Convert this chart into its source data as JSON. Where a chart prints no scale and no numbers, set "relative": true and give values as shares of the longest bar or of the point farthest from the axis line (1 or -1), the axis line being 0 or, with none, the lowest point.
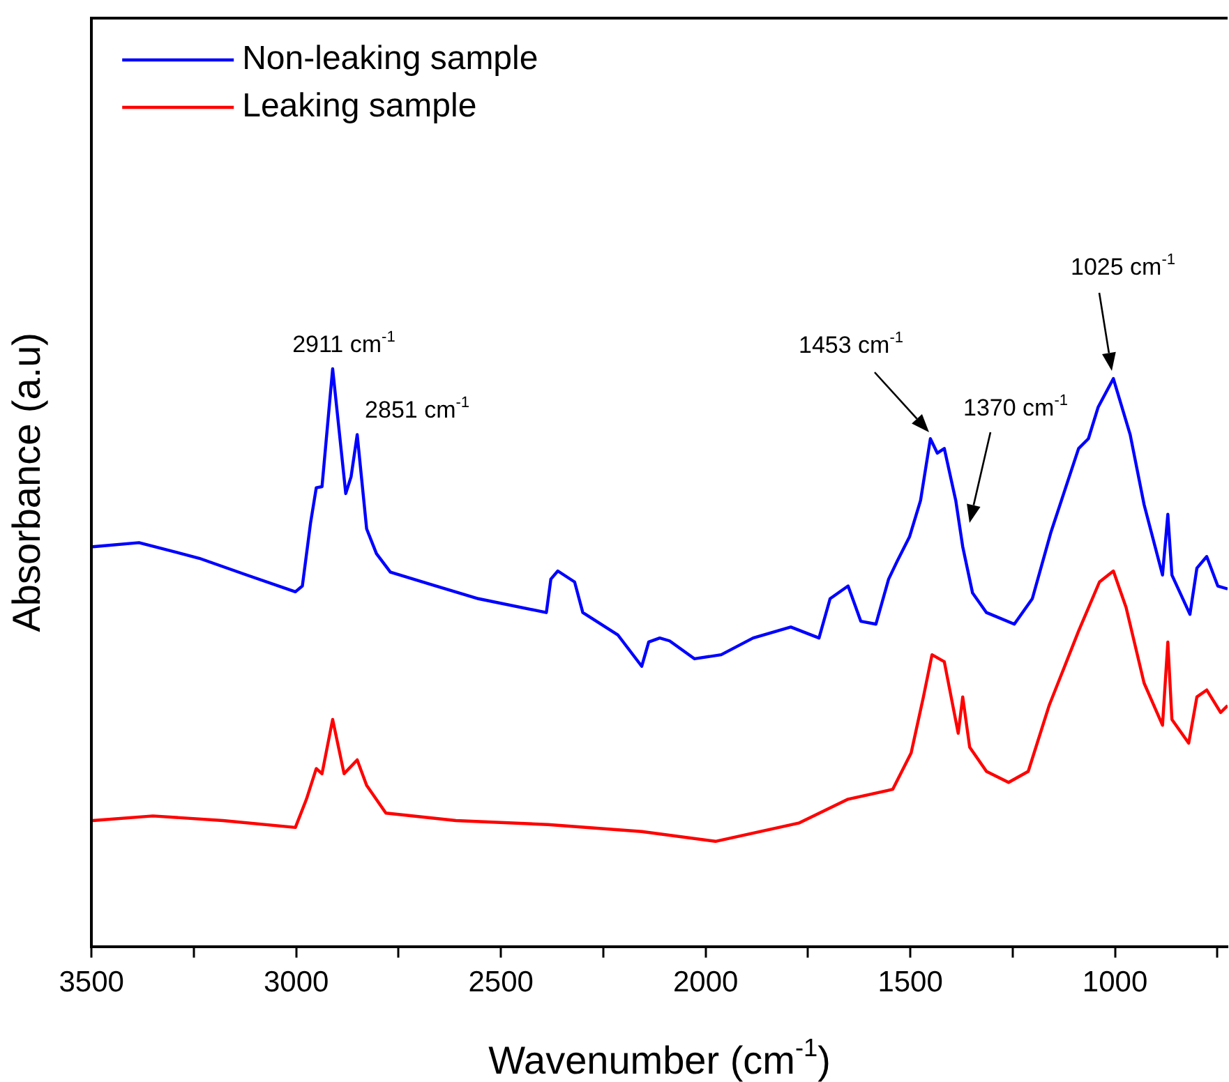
{
  "chart_data": {
    "type": "line",
    "xlabel": "Wavenumber (cm$^{-1}$)",
    "ylabel": "Absorbance (a.u)",
    "relative": true,
    "legend": "top left",
    "grid": false,
    "marker": "none",
    "line_style": "solid",
    "xlim": [
      3500,
      725
    ],
    "xticks": [
      3500,
      {
        "value": 3250,
        "label": null
      },
      3000,
      {
        "value": 2750,
        "label": null
      },
      2500,
      {
        "value": 2250,
        "label": null
      },
      2000,
      {
        "value": 1750,
        "label": null
      },
      1500,
      {
        "value": 1250,
        "label": null
      },
      1000,
      {
        "value": 750,
        "label": null
      }
    ],
    "annotations": [
      {
        "text": "2911 cm$^{-1}$",
        "x": 2911,
        "y": 1.0
      },
      {
        "text": "2851 cm$^{-1}$",
        "x": 2851,
        "y": 0.886
      },
      "1453 cm$^{-1}$",
      "1370 cm$^{-1}$",
      "1025 cm$^{-1}$"
    ],
    "series": [
      {
        "name": "Non-leaking sample",
        "color": "#0000ff",
        "x": [
          3497,
          3384,
          3237,
          3121,
          3002,
          2985,
          2965,
          2951,
          2937,
          2911,
          2879,
          2866,
          2851,
          2828,
          2804,
          2770,
          2668,
          2555,
          2389,
          2378,
          2361,
          2320,
          2300,
          2214,
          2156,
          2139,
          2112,
          2088,
          2027,
          1962,
          1884,
          1792,
          1723,
          1696,
          1652,
          1621,
          1584,
          1553,
          1532,
          1502,
          1475,
          1451,
          1434,
          1417,
          1389,
          1372,
          1348,
          1314,
          1246,
          1202,
          1157,
          1089,
          1065,
          1041,
          1004,
          963,
          929,
          884,
          871,
          861,
          817,
          800,
          776,
          749,
          725
        ],
        "values": [
          0.692,
          0.699,
          0.672,
          0.643,
          0.614,
          0.624,
          0.733,
          0.794,
          0.796,
          1.0,
          0.784,
          0.813,
          0.886,
          0.723,
          0.68,
          0.648,
          0.626,
          0.602,
          0.578,
          0.636,
          0.65,
          0.631,
          0.578,
          0.539,
          0.485,
          0.527,
          0.534,
          0.529,
          0.498,
          0.505,
          0.534,
          0.553,
          0.534,
          0.602,
          0.624,
          0.563,
          0.558,
          0.636,
          0.667,
          0.709,
          0.772,
          0.879,
          0.854,
          0.862,
          0.772,
          0.692,
          0.612,
          0.578,
          0.558,
          0.602,
          0.716,
          0.862,
          0.879,
          0.934,
          0.983,
          0.886,
          0.765,
          0.643,
          0.748,
          0.643,
          0.575,
          0.655,
          0.675,
          0.624,
          0.619
        ]
      },
      {
        "name": "Leaking sample",
        "color": "#ff0000",
        "x": [
          3497,
          3350,
          3179,
          3002,
          2975,
          2951,
          2937,
          2911,
          2883,
          2851,
          2828,
          2781,
          2610,
          2385,
          2156,
          1976,
          1771,
          1652,
          1543,
          1498,
          1468,
          1447,
          1417,
          1383,
          1372,
          1355,
          1314,
          1260,
          1212,
          1161,
          1089,
          1038,
          1004,
          973,
          929,
          884,
          871,
          861,
          820,
          800,
          776,
          742,
          725
        ],
        "values": [
          0.218,
          0.226,
          0.218,
          0.206,
          0.255,
          0.308,
          0.299,
          0.393,
          0.299,
          0.323,
          0.279,
          0.231,
          0.218,
          0.211,
          0.199,
          0.182,
          0.214,
          0.255,
          0.272,
          0.335,
          0.432,
          0.505,
          0.493,
          0.369,
          0.432,
          0.345,
          0.303,
          0.284,
          0.303,
          0.417,
          0.546,
          0.631,
          0.65,
          0.587,
          0.456,
          0.383,
          0.527,
          0.393,
          0.352,
          0.432,
          0.444,
          0.405,
          0.417
        ]
      }
    ]
  }
}
